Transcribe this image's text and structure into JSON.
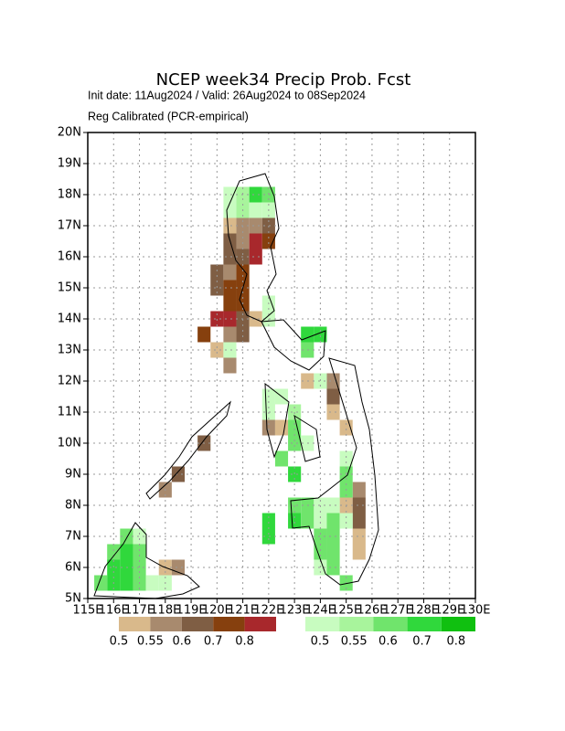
{
  "chart_data": {
    "type": "grid-map",
    "title": "NCEP week34 Precip Prob. Fcst",
    "subtitle": "Init date: 11Aug2024 / Valid: 26Aug2024 to 08Sep2024",
    "method": "Reg Calibrated (PCR-empirical)",
    "xlim": [
      115,
      130
    ],
    "ylim": [
      5,
      20
    ],
    "xticks": [
      {
        "value": 115,
        "label": "115E"
      },
      {
        "value": 116,
        "label": "116E"
      },
      {
        "value": 117,
        "label": "117E"
      },
      {
        "value": 118,
        "label": "118E"
      },
      {
        "value": 119,
        "label": "119E"
      },
      {
        "value": 120,
        "label": "120E"
      },
      {
        "value": 121,
        "label": "121E"
      },
      {
        "value": 122,
        "label": "122E"
      },
      {
        "value": 123,
        "label": "123E"
      },
      {
        "value": 124,
        "label": "124E"
      },
      {
        "value": 125,
        "label": "125E"
      },
      {
        "value": 126,
        "label": "126E"
      },
      {
        "value": 127,
        "label": "127E"
      },
      {
        "value": 128,
        "label": "128E"
      },
      {
        "value": 129,
        "label": "129E"
      },
      {
        "value": 130,
        "label": "130E"
      }
    ],
    "yticks": [
      {
        "value": 5,
        "label": "5N"
      },
      {
        "value": 6,
        "label": "6N"
      },
      {
        "value": 7,
        "label": "7N"
      },
      {
        "value": 8,
        "label": "8N"
      },
      {
        "value": 9,
        "label": "9N"
      },
      {
        "value": 10,
        "label": "10N"
      },
      {
        "value": 11,
        "label": "11N"
      },
      {
        "value": 12,
        "label": "12N"
      },
      {
        "value": 13,
        "label": "13N"
      },
      {
        "value": 14,
        "label": "14N"
      },
      {
        "value": 15,
        "label": "15N"
      },
      {
        "value": 16,
        "label": "16N"
      },
      {
        "value": 17,
        "label": "17N"
      },
      {
        "value": 18,
        "label": "18N"
      },
      {
        "value": 19,
        "label": "19N"
      },
      {
        "value": 20,
        "label": "20N"
      }
    ],
    "grid": true,
    "cell_size": 0.5,
    "levels": [
      0.5,
      0.55,
      0.6,
      0.7,
      0.8
    ],
    "below_colors": [
      "#d9b98b",
      "#a88a6e",
      "#7f5e44",
      "#86400e",
      "#a8282c"
    ],
    "above_colors": [
      "#c8fcc0",
      "#a8f49c",
      "#70e46c",
      "#30d83c",
      "#10c010"
    ],
    "below": [
      [
        120.5,
        17,
        0.5
      ],
      [
        121,
        17,
        0.55
      ],
      [
        121.5,
        17,
        0.55
      ],
      [
        122,
        17,
        0.6
      ],
      [
        120.5,
        16.5,
        0.6
      ],
      [
        121,
        16.5,
        0.55
      ],
      [
        121.5,
        16.5,
        0.8
      ],
      [
        122,
        16.5,
        0.7
      ],
      [
        120.5,
        16,
        0.6
      ],
      [
        121,
        16,
        0.6
      ],
      [
        121.5,
        16,
        0.8
      ],
      [
        120,
        15.5,
        0.6
      ],
      [
        120.5,
        15.5,
        0.55
      ],
      [
        121,
        15.5,
        0.7
      ],
      [
        120,
        15,
        0.6
      ],
      [
        120.5,
        15,
        0.7
      ],
      [
        121,
        15,
        0.7
      ],
      [
        120.5,
        14.5,
        0.7
      ],
      [
        121,
        14.5,
        0.7
      ],
      [
        120,
        14,
        0.8
      ],
      [
        120.5,
        14,
        0.8
      ],
      [
        121,
        14,
        0.6
      ],
      [
        121.5,
        14,
        0.5
      ],
      [
        119.5,
        13.5,
        0.7
      ],
      [
        120.5,
        13.5,
        0.55
      ],
      [
        121,
        13.5,
        0.6
      ],
      [
        120,
        13,
        0.5
      ],
      [
        120.5,
        12.5,
        0.55
      ],
      [
        124.5,
        12,
        0.55
      ],
      [
        123.5,
        12,
        0.5
      ],
      [
        124.5,
        11.5,
        0.6
      ],
      [
        124.5,
        11,
        0.5
      ],
      [
        122,
        10.5,
        0.55
      ],
      [
        122.5,
        10.5,
        0.5
      ],
      [
        125,
        10.5,
        0.5
      ],
      [
        119.5,
        10,
        0.6
      ],
      [
        118.5,
        9,
        0.6
      ],
      [
        118,
        8.5,
        0.55
      ],
      [
        125.5,
        8.5,
        0.55
      ],
      [
        125,
        8,
        0.5
      ],
      [
        125.5,
        8,
        0.6
      ],
      [
        125.5,
        7.5,
        0.6
      ],
      [
        125.5,
        7,
        0.5
      ],
      [
        125.5,
        6.5,
        0.5
      ],
      [
        118,
        6,
        0.5
      ],
      [
        118.5,
        6,
        0.55
      ]
    ],
    "above": [
      [
        120.5,
        18,
        0.5
      ],
      [
        121,
        18,
        0.55
      ],
      [
        121.5,
        18,
        0.7
      ],
      [
        122,
        18,
        0.6
      ],
      [
        120.5,
        17.5,
        0.5
      ],
      [
        121,
        17.5,
        0.55
      ],
      [
        121.5,
        17.5,
        0.5
      ],
      [
        122,
        17.5,
        0.5
      ],
      [
        122,
        14.5,
        0.5
      ],
      [
        122,
        14,
        0.5
      ],
      [
        123.5,
        13.5,
        0.7
      ],
      [
        124,
        13.5,
        0.7
      ],
      [
        120.5,
        13,
        0.5
      ],
      [
        123.5,
        13,
        0.6
      ],
      [
        124,
        12,
        0.5
      ],
      [
        122,
        11.5,
        0.5
      ],
      [
        122.5,
        11.5,
        0.5
      ],
      [
        122,
        11,
        0.5
      ],
      [
        123,
        11,
        0.55
      ],
      [
        123,
        10.5,
        0.6
      ],
      [
        123,
        10,
        0.6
      ],
      [
        123.5,
        10,
        0.5
      ],
      [
        122.5,
        9.5,
        0.6
      ],
      [
        125,
        9.5,
        0.5
      ],
      [
        123,
        9,
        0.7
      ],
      [
        125,
        9,
        0.6
      ],
      [
        125,
        8.5,
        0.6
      ],
      [
        123,
        8,
        0.6
      ],
      [
        123.5,
        8,
        0.6
      ],
      [
        124,
        8,
        0.5
      ],
      [
        124.5,
        8,
        0.5
      ],
      [
        122,
        7.5,
        0.7
      ],
      [
        123,
        7.5,
        0.7
      ],
      [
        123.5,
        7.5,
        0.6
      ],
      [
        124,
        7.5,
        0.5
      ],
      [
        124.5,
        7.5,
        0.6
      ],
      [
        125,
        7.5,
        0.5
      ],
      [
        122,
        7,
        0.7
      ],
      [
        124,
        7,
        0.6
      ],
      [
        124.5,
        7,
        0.6
      ],
      [
        124,
        6.5,
        0.6
      ],
      [
        124.5,
        6.5,
        0.6
      ],
      [
        124,
        6,
        0.5
      ],
      [
        124.5,
        6,
        0.6
      ],
      [
        125,
        5.5,
        0.6
      ],
      [
        116.5,
        7,
        0.6
      ],
      [
        117,
        7,
        0.5
      ],
      [
        116,
        6.5,
        0.6
      ],
      [
        116.5,
        6.5,
        0.7
      ],
      [
        117,
        6.5,
        0.6
      ],
      [
        116,
        6,
        0.7
      ],
      [
        116.5,
        6,
        0.7
      ],
      [
        117,
        6,
        0.6
      ],
      [
        116,
        5.5,
        0.7
      ],
      [
        116.5,
        5.5,
        0.7
      ],
      [
        117,
        5.5,
        0.6
      ],
      [
        117.5,
        5.5,
        0.5
      ],
      [
        118,
        5.5,
        0.5
      ],
      [
        115.5,
        5.5,
        0.6
      ]
    ]
  }
}
